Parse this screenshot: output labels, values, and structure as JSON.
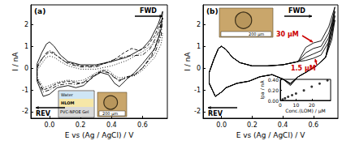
{
  "chart_data": [
    {
      "type": "line",
      "title": "(a)",
      "x_label": "E vs (Ag / AgCl) / V",
      "y_label": "I / nA",
      "xlim": [
        -0.12,
        0.76
      ],
      "ylim": [
        -2.3,
        2.9
      ],
      "xticks": [
        {
          "value": 0,
          "label": "0.0"
        },
        {
          "value": 0.2,
          "label": "0.2"
        },
        {
          "value": 0.4,
          "label": "0.4"
        },
        {
          "value": 0.6,
          "label": "0.6"
        }
      ],
      "yticks": [
        -2,
        -1,
        0,
        1,
        2
      ],
      "annotations": [
        "FWD",
        "REV",
        "Water",
        "HLOM",
        "PVC-NPOE Gel",
        "200 µm"
      ],
      "series": [
        {
          "color": "#000000",
          "line_style": "solid",
          "x": [
            -0.08,
            -0.05,
            -0.02,
            0,
            0.03,
            0.07,
            0.12,
            0.2,
            0.3,
            0.4,
            0.5,
            0.6,
            0.65,
            0.7,
            0.73,
            0.72,
            0.68,
            0.6,
            0.55,
            0.5,
            0.45,
            0.42,
            0.38,
            0.33,
            0.28,
            0.22,
            0.17,
            0.12,
            0.05,
            0,
            -0.04,
            -0.08,
            -0.08
          ],
          "values": [
            0.2,
            0.7,
            1.1,
            1.2,
            1.0,
            0.6,
            0.3,
            0.15,
            0.15,
            0.3,
            0.5,
            0.9,
            1.3,
            2.0,
            2.6,
            1.8,
            0.9,
            0.2,
            -0.2,
            -0.5,
            -0.85,
            -0.7,
            -0.3,
            -0.2,
            -0.4,
            -0.8,
            -0.9,
            -0.8,
            -0.9,
            -1.2,
            -1.3,
            -0.6,
            0.2
          ]
        },
        {
          "color": "#000000",
          "line_style": "dashed",
          "x": [
            -0.08,
            -0.04,
            0,
            0.04,
            0.1,
            0.2,
            0.3,
            0.4,
            0.48,
            0.53,
            0.58,
            0.63,
            0.68,
            0.72,
            0.71,
            0.66,
            0.6,
            0.55,
            0.5,
            0.45,
            0.4,
            0.35,
            0.3,
            0.25,
            0.2,
            0.12,
            0.05,
            0,
            -0.04,
            -0.08,
            -0.08
          ],
          "values": [
            0.1,
            0.5,
            0.75,
            0.6,
            0.3,
            0.1,
            0.1,
            0.3,
            0.7,
            0.9,
            0.8,
            1.0,
            1.5,
            2.2,
            1.5,
            0.6,
            0.0,
            -0.3,
            -0.4,
            -0.6,
            -0.3,
            -0.1,
            -0.3,
            -0.6,
            -0.7,
            -0.6,
            -0.7,
            -0.9,
            -1.0,
            -0.5,
            0.1
          ]
        },
        {
          "color": "#000000",
          "line_style": "dashdot",
          "x": [
            -0.08,
            -0.05,
            -0.02,
            0,
            0.03,
            0.07,
            0.12,
            0.2,
            0.3,
            0.4,
            0.5,
            0.6,
            0.65,
            0.7,
            0.73,
            0.72,
            0.68,
            0.6,
            0.55,
            0.5,
            0.45,
            0.42,
            0.38,
            0.33,
            0.28,
            0.22,
            0.17,
            0.12,
            0.05,
            0,
            -0.04,
            -0.08,
            -0.08
          ],
          "values": [
            0.0,
            0.4,
            0.7,
            0.8,
            0.7,
            0.45,
            0.2,
            0.05,
            0.05,
            0.35,
            0.55,
            0.6,
            0.9,
            1.6,
            2.3,
            1.5,
            0.7,
            0.0,
            -0.3,
            -0.45,
            -0.55,
            -0.45,
            -0.2,
            -0.15,
            -0.35,
            -0.65,
            -0.75,
            -0.7,
            -0.8,
            -1.0,
            -1.1,
            -0.5,
            0.0
          ]
        },
        {
          "color": "#000000",
          "line_style": "dotted",
          "x": [
            -0.08,
            -0.05,
            -0.02,
            0,
            0.03,
            0.07,
            0.12,
            0.2,
            0.3,
            0.4,
            0.5,
            0.6,
            0.65,
            0.7,
            0.73,
            0.72,
            0.68,
            0.6,
            0.55,
            0.5,
            0.45,
            0.42,
            0.38,
            0.33,
            0.28,
            0.22,
            0.17,
            0.12,
            0.05,
            0,
            -0.04,
            -0.08,
            -0.08
          ],
          "values": [
            -0.1,
            0.2,
            0.5,
            0.55,
            0.5,
            0.3,
            0.1,
            -0.05,
            -0.05,
            0.1,
            0.35,
            0.75,
            1.0,
            1.3,
            1.6,
            1.1,
            0.5,
            -0.1,
            -0.35,
            -0.4,
            -0.45,
            -0.35,
            -0.1,
            -0.1,
            -0.3,
            -0.55,
            -0.6,
            -0.55,
            -0.65,
            -0.8,
            -0.9,
            -0.4,
            -0.1
          ]
        }
      ]
    },
    {
      "type": "line",
      "title": "(b)",
      "x_label": "E vs (Ag / AgCl) / V",
      "y_label": "I / nA",
      "xlim": [
        -0.12,
        0.76
      ],
      "ylim": [
        -2.3,
        2.9
      ],
      "xticks": [
        {
          "value": 0,
          "label": "0.0"
        },
        {
          "value": 0.2,
          "label": "0.2"
        },
        {
          "value": 0.4,
          "label": "0.4"
        },
        {
          "value": 0.6,
          "label": "0.6"
        }
      ],
      "yticks": [
        -2,
        -1,
        0,
        1,
        2
      ],
      "annotations": [
        "FWD",
        "REV",
        "30 µM",
        "1.5 µM",
        "200 µm"
      ],
      "series": [
        {
          "color": "#000000",
          "line_style": "solid",
          "x": [
            -0.08,
            -0.05,
            -0.02,
            0,
            0.03,
            0.07,
            0.12,
            0.2,
            0.3,
            0.4,
            0.5,
            0.55,
            0.6,
            0.65,
            0.7,
            0.74,
            0.72,
            0.68,
            0.62,
            0.55,
            0.5,
            0.45,
            0.4,
            0.33,
            0.25,
            0.18,
            0.1,
            0.03,
            0,
            -0.04,
            -0.08,
            -0.08
          ],
          "values": [
            -0.2,
            0.4,
            0.9,
            1.0,
            0.85,
            0.5,
            0.25,
            0.1,
            0.1,
            0.15,
            0.3,
            0.35,
            0.45,
            0.6,
            1.2,
            2.2,
            1.3,
            0.5,
            0.1,
            -0.2,
            -0.4,
            -0.7,
            -0.5,
            -0.3,
            -0.4,
            -0.6,
            -0.7,
            -0.9,
            -1.1,
            -1.3,
            -0.7,
            -0.2
          ]
        },
        {
          "color": "#000000",
          "line_style": "solid",
          "x": [
            -0.08,
            -0.05,
            -0.02,
            0,
            0.03,
            0.07,
            0.12,
            0.2,
            0.3,
            0.4,
            0.5,
            0.55,
            0.6,
            0.65,
            0.7,
            0.74,
            0.72,
            0.68,
            0.62,
            0.55,
            0.5,
            0.45,
            0.4,
            0.33,
            0.25,
            0.18,
            0.1,
            0.03,
            0,
            -0.04,
            -0.08,
            -0.08
          ],
          "values": [
            -0.2,
            0.4,
            0.9,
            1.0,
            0.85,
            0.5,
            0.25,
            0.1,
            0.1,
            0.15,
            0.3,
            0.5,
            0.65,
            0.8,
            1.4,
            2.4,
            1.5,
            0.5,
            0.1,
            -0.2,
            -0.4,
            -0.7,
            -0.5,
            -0.3,
            -0.4,
            -0.6,
            -0.7,
            -0.9,
            -1.1,
            -1.3,
            -0.7,
            -0.2
          ]
        },
        {
          "color": "#000000",
          "line_style": "solid",
          "x": [
            -0.08,
            -0.05,
            -0.02,
            0,
            0.03,
            0.07,
            0.12,
            0.2,
            0.3,
            0.4,
            0.5,
            0.55,
            0.6,
            0.65,
            0.7,
            0.74,
            0.72,
            0.68,
            0.62,
            0.55,
            0.5,
            0.45,
            0.4,
            0.33,
            0.25,
            0.18,
            0.1,
            0.03,
            0,
            -0.04,
            -0.08,
            -0.08
          ],
          "values": [
            -0.2,
            0.4,
            0.9,
            1.0,
            0.85,
            0.5,
            0.25,
            0.1,
            0.1,
            0.15,
            0.3,
            0.7,
            0.9,
            1.0,
            1.6,
            2.6,
            1.7,
            0.5,
            0.1,
            -0.2,
            -0.4,
            -0.75,
            -0.5,
            -0.3,
            -0.4,
            -0.6,
            -0.7,
            -0.9,
            -1.1,
            -1.3,
            -0.7,
            -0.2
          ]
        },
        {
          "color": "#000000",
          "line_style": "solid",
          "x": [
            -0.08,
            -0.05,
            -0.02,
            0,
            0.03,
            0.07,
            0.12,
            0.2,
            0.3,
            0.4,
            0.5,
            0.55,
            0.6,
            0.65,
            0.7,
            0.74,
            0.72,
            0.68,
            0.62,
            0.55,
            0.5,
            0.45,
            0.4,
            0.33,
            0.25,
            0.18,
            0.1,
            0.03,
            0,
            -0.04,
            -0.08,
            -0.08
          ],
          "values": [
            -0.2,
            0.4,
            0.9,
            1.0,
            0.85,
            0.5,
            0.25,
            0.1,
            0.1,
            0.15,
            0.3,
            0.95,
            1.15,
            1.25,
            1.9,
            2.8,
            2.0,
            0.5,
            0.1,
            -0.2,
            -0.4,
            -0.8,
            -0.5,
            -0.3,
            -0.4,
            -0.6,
            -0.7,
            -0.9,
            -1.1,
            -1.3,
            -0.7,
            -0.2
          ]
        }
      ]
    },
    {
      "type": "scatter",
      "x_label": "Conc.(LOM) / µM",
      "y_label": "Ipa / nA",
      "xlim": [
        0,
        32
      ],
      "ylim": [
        0,
        0.4
      ],
      "xticks": [
        0,
        10,
        20
      ],
      "yticks": [
        {
          "value": 0,
          "label": "0.00"
        },
        {
          "value": 0.2,
          "label": "0.20"
        },
        {
          "value": 0.4,
          "label": "0.40"
        }
      ],
      "marker": "circle",
      "color": "#000000",
      "x": [
        1.5,
        3,
        5,
        7.5,
        10,
        15,
        20,
        25,
        30
      ],
      "values": [
        0.02,
        0.04,
        0.07,
        0.1,
        0.13,
        0.19,
        0.26,
        0.32,
        0.38
      ]
    }
  ]
}
